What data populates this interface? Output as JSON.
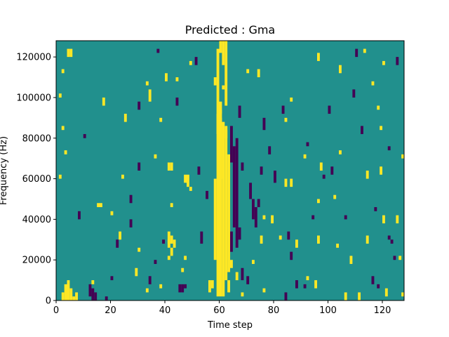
{
  "chart_data": {
    "type": "heatmap",
    "title": "Predicted : Gma",
    "xlabel": "Time step",
    "ylabel": "Frequency (Hz)",
    "xlim": [
      0,
      128
    ],
    "ylim": [
      0,
      128000
    ],
    "xticks": [
      0,
      20,
      40,
      60,
      80,
      100,
      120
    ],
    "xtick_labels": [
      "0",
      "20",
      "40",
      "60",
      "80",
      "100",
      "120"
    ],
    "yticks": [
      0,
      20000,
      40000,
      60000,
      80000,
      100000,
      120000
    ],
    "ytick_labels": [
      "0",
      "20000",
      "40000",
      "60000",
      "80000",
      "100000",
      "120000"
    ],
    "grid": false,
    "colormap": "viridis",
    "background_value": 0,
    "colors": {
      "low": "#440154",
      "mid": "#21908d",
      "high": "#fde725"
    },
    "cells_note_units": "each cell: [time_step_start, time_step_end, freq_start_hz, freq_end_hz, value(-1=low,1=high)]",
    "cells": [
      [
        60,
        61,
        122000,
        128000,
        1
      ],
      [
        61,
        62,
        116000,
        128000,
        1
      ],
      [
        62,
        63,
        96000,
        128000,
        1
      ],
      [
        59,
        60,
        82000,
        124000,
        1
      ],
      [
        60,
        61,
        60000,
        98000,
        1
      ],
      [
        59,
        60,
        2000,
        92000,
        1
      ],
      [
        60,
        61,
        2000,
        90000,
        1
      ],
      [
        61,
        62,
        2000,
        88000,
        1
      ],
      [
        62,
        63,
        10000,
        86000,
        1
      ],
      [
        63,
        64,
        14000,
        72000,
        1
      ],
      [
        58,
        59,
        20000,
        60000,
        1
      ],
      [
        57,
        58,
        6000,
        10000,
        1
      ],
      [
        56,
        57,
        4000,
        10000,
        1
      ],
      [
        63,
        64,
        4000,
        10000,
        1
      ],
      [
        64,
        65,
        68000,
        86000,
        -1
      ],
      [
        65,
        66,
        36000,
        76000,
        -1
      ],
      [
        66,
        67,
        26000,
        80000,
        -1
      ],
      [
        67,
        68,
        30000,
        36000,
        -1
      ],
      [
        64,
        65,
        24000,
        34000,
        -1
      ],
      [
        68,
        69,
        10000,
        16000,
        -1
      ],
      [
        67,
        68,
        90000,
        96000,
        -1
      ],
      [
        71,
        72,
        50000,
        58000,
        -1
      ],
      [
        72,
        73,
        40000,
        50000,
        -1
      ],
      [
        73,
        74,
        36000,
        46000,
        -1
      ],
      [
        74,
        75,
        46000,
        50000,
        -1
      ],
      [
        12,
        13,
        2000,
        8000,
        -1
      ],
      [
        13,
        14,
        0,
        6000,
        -1
      ],
      [
        14,
        15,
        0,
        4000,
        -1
      ],
      [
        45,
        46,
        4000,
        8000,
        -1
      ],
      [
        46,
        47,
        4000,
        8000,
        -1
      ],
      [
        47,
        48,
        6000,
        8000,
        -1
      ],
      [
        2,
        3,
        0,
        4000,
        1
      ],
      [
        3,
        4,
        0,
        8000,
        1
      ],
      [
        4,
        5,
        0,
        10000,
        1
      ],
      [
        5,
        6,
        0,
        6000,
        1
      ],
      [
        6,
        7,
        0,
        2000,
        1
      ],
      [
        7,
        8,
        0,
        4000,
        1
      ],
      [
        4,
        5,
        120000,
        124000,
        1
      ],
      [
        5,
        6,
        120000,
        124000,
        1
      ],
      [
        15,
        16,
        46000,
        48000,
        1
      ],
      [
        16,
        17,
        46000,
        48000,
        1
      ],
      [
        20,
        21,
        42000,
        44000,
        1
      ],
      [
        42,
        43,
        46000,
        48000,
        1
      ],
      [
        41,
        42,
        64000,
        68000,
        1
      ],
      [
        42,
        43,
        64000,
        68000,
        1
      ],
      [
        41,
        42,
        26000,
        30000,
        1
      ],
      [
        41,
        42,
        20000,
        22000,
        1
      ],
      [
        41,
        42,
        28000,
        34000,
        1
      ],
      [
        42,
        43,
        28000,
        32000,
        1
      ],
      [
        43,
        44,
        26000,
        30000,
        1
      ],
      [
        46,
        47,
        14000,
        16000,
        1
      ],
      [
        42,
        43,
        22000,
        26000,
        1
      ],
      [
        33,
        34,
        4000,
        6000,
        1
      ],
      [
        47,
        48,
        58000,
        62000,
        1
      ],
      [
        48,
        49,
        56000,
        62000,
        1
      ],
      [
        49,
        50,
        54000,
        56000,
        1
      ],
      [
        38,
        39,
        88000,
        90000,
        1
      ],
      [
        36,
        37,
        70000,
        72000,
        1
      ],
      [
        25,
        26,
        88000,
        92000,
        1
      ],
      [
        17,
        18,
        96000,
        100000,
        1
      ],
      [
        13,
        14,
        8000,
        10000,
        1
      ],
      [
        1,
        2,
        60000,
        62000,
        1
      ],
      [
        3,
        4,
        72000,
        74000,
        1
      ],
      [
        2,
        3,
        84000,
        86000,
        1
      ],
      [
        1,
        2,
        100000,
        102000,
        1
      ],
      [
        2,
        3,
        112000,
        114000,
        1
      ],
      [
        60,
        61,
        92000,
        94000,
        1
      ],
      [
        62,
        63,
        80000,
        84000,
        1
      ],
      [
        118,
        119,
        94000,
        96000,
        1
      ],
      [
        119,
        120,
        84000,
        86000,
        1
      ],
      [
        120,
        121,
        116000,
        118000,
        1
      ],
      [
        116,
        117,
        106000,
        108000,
        1
      ],
      [
        127,
        128,
        2000,
        4000,
        1
      ],
      [
        126,
        127,
        20000,
        22000,
        1
      ],
      [
        124,
        125,
        20000,
        22000,
        -1
      ],
      [
        123,
        124,
        28000,
        30000,
        -1
      ],
      [
        117,
        118,
        44000,
        46000,
        -1
      ],
      [
        122,
        123,
        30000,
        32000,
        -1
      ],
      [
        118,
        119,
        6000,
        8000,
        -1
      ],
      [
        116,
        117,
        8000,
        12000,
        -1
      ],
      [
        110,
        111,
        120000,
        124000,
        -1
      ],
      [
        109,
        110,
        100000,
        104000,
        -1
      ],
      [
        122,
        123,
        74000,
        76000,
        -1
      ],
      [
        100,
        101,
        92000,
        96000,
        -1
      ],
      [
        101,
        102,
        62000,
        66000,
        -1
      ],
      [
        98,
        99,
        60000,
        62000,
        -1
      ],
      [
        94,
        95,
        40000,
        42000,
        -1
      ],
      [
        92,
        93,
        76000,
        78000,
        -1
      ],
      [
        86,
        87,
        20000,
        24000,
        -1
      ],
      [
        88,
        89,
        6000,
        10000,
        -1
      ],
      [
        91,
        92,
        6000,
        8000,
        -1
      ],
      [
        84,
        85,
        0,
        4000,
        -1
      ],
      [
        76,
        77,
        84000,
        90000,
        -1
      ],
      [
        78,
        79,
        72000,
        76000,
        -1
      ],
      [
        80,
        81,
        58000,
        64000,
        -1
      ],
      [
        52,
        53,
        62000,
        66000,
        -1
      ],
      [
        55,
        56,
        50000,
        54000,
        -1
      ],
      [
        53,
        54,
        28000,
        34000,
        -1
      ],
      [
        44,
        45,
        96000,
        100000,
        -1
      ],
      [
        39,
        40,
        28000,
        30000,
        -1
      ],
      [
        36,
        37,
        18000,
        20000,
        -1
      ],
      [
        34,
        35,
        8000,
        12000,
        -1
      ],
      [
        30,
        31,
        64000,
        68000,
        -1
      ],
      [
        27,
        28,
        36000,
        40000,
        -1
      ],
      [
        22,
        23,
        26000,
        30000,
        -1
      ],
      [
        20,
        21,
        10000,
        12000,
        -1
      ],
      [
        18,
        19,
        0,
        2000,
        -1
      ],
      [
        10,
        11,
        80000,
        82000,
        -1
      ],
      [
        8,
        9,
        40000,
        44000,
        -1
      ],
      [
        30,
        31,
        94000,
        98000,
        -1
      ],
      [
        37,
        38,
        122000,
        124000,
        -1
      ],
      [
        51,
        52,
        116000,
        120000,
        -1
      ],
      [
        70,
        71,
        8000,
        12000,
        -1
      ],
      [
        68,
        69,
        64000,
        68000,
        -1
      ],
      [
        75,
        76,
        62000,
        66000,
        -1
      ],
      [
        83,
        84,
        92000,
        96000,
        -1
      ],
      [
        85,
        86,
        30000,
        34000,
        -1
      ],
      [
        106,
        107,
        40000,
        42000,
        -1
      ],
      [
        112,
        113,
        82000,
        86000,
        -1
      ],
      [
        125,
        126,
        116000,
        120000,
        -1
      ],
      [
        27,
        28,
        48000,
        52000,
        -1
      ],
      [
        33,
        34,
        106000,
        108000,
        1
      ],
      [
        34,
        35,
        98000,
        104000,
        1
      ],
      [
        40,
        41,
        108000,
        112000,
        1
      ],
      [
        44,
        45,
        108000,
        110000,
        1
      ],
      [
        49,
        50,
        116000,
        118000,
        1
      ],
      [
        58,
        59,
        106000,
        110000,
        1
      ],
      [
        61,
        62,
        104000,
        106000,
        1
      ],
      [
        70,
        71,
        112000,
        114000,
        1
      ],
      [
        74,
        75,
        110000,
        114000,
        1
      ],
      [
        86,
        87,
        98000,
        100000,
        1
      ],
      [
        96,
        97,
        118000,
        122000,
        1
      ],
      [
        104,
        105,
        112000,
        116000,
        1
      ],
      [
        113,
        114,
        122000,
        124000,
        1
      ],
      [
        88,
        89,
        26000,
        30000,
        1
      ],
      [
        96,
        97,
        28000,
        32000,
        1
      ],
      [
        103,
        104,
        26000,
        28000,
        1
      ],
      [
        108,
        109,
        18000,
        22000,
        1
      ],
      [
        114,
        115,
        28000,
        32000,
        1
      ],
      [
        120,
        121,
        38000,
        42000,
        1
      ],
      [
        125,
        126,
        38000,
        42000,
        1
      ],
      [
        102,
        103,
        50000,
        52000,
        1
      ],
      [
        97,
        98,
        64000,
        68000,
        1
      ],
      [
        86,
        87,
        56000,
        60000,
        1
      ],
      [
        84,
        85,
        56000,
        60000,
        1
      ],
      [
        96,
        97,
        48000,
        50000,
        1
      ],
      [
        104,
        105,
        72000,
        74000,
        1
      ],
      [
        91,
        92,
        70000,
        72000,
        1
      ],
      [
        84,
        85,
        88000,
        90000,
        1
      ],
      [
        76,
        77,
        40000,
        42000,
        1
      ],
      [
        79,
        80,
        38000,
        42000,
        1
      ],
      [
        82,
        83,
        30000,
        32000,
        1
      ],
      [
        75,
        76,
        28000,
        32000,
        1
      ],
      [
        72,
        73,
        18000,
        20000,
        1
      ],
      [
        68,
        69,
        2000,
        4000,
        1
      ],
      [
        76,
        77,
        4000,
        6000,
        1
      ],
      [
        64,
        65,
        16000,
        20000,
        1
      ],
      [
        66,
        67,
        10000,
        14000,
        1
      ],
      [
        92,
        93,
        10000,
        12000,
        1
      ],
      [
        95,
        96,
        6000,
        10000,
        1
      ],
      [
        106,
        107,
        0,
        4000,
        1
      ],
      [
        111,
        112,
        0,
        4000,
        1
      ],
      [
        121,
        122,
        2000,
        6000,
        1
      ],
      [
        114,
        115,
        60000,
        64000,
        1
      ],
      [
        119,
        120,
        62000,
        66000,
        1
      ],
      [
        127,
        128,
        70000,
        72000,
        1
      ],
      [
        23,
        24,
        30000,
        34000,
        1
      ],
      [
        29,
        30,
        12000,
        16000,
        1
      ],
      [
        24,
        25,
        60000,
        62000,
        1
      ],
      [
        30,
        31,
        24000,
        26000,
        1
      ],
      [
        38,
        39,
        6000,
        8000,
        1
      ],
      [
        47,
        48,
        20000,
        22000,
        1
      ]
    ]
  }
}
